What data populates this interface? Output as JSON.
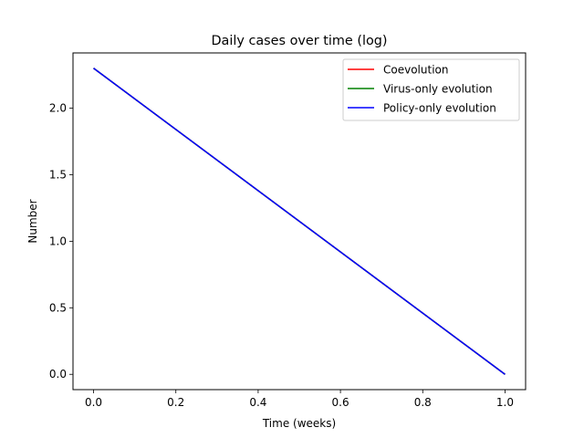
{
  "chart_data": {
    "type": "line",
    "title": "Daily cases over time (log)",
    "xlabel": "Time (weeks)",
    "ylabel": "Number",
    "xlim": [
      -0.05,
      1.05
    ],
    "ylim": [
      -0.115,
      2.415
    ],
    "x_ticks": [
      0.0,
      0.2,
      0.4,
      0.6,
      0.8,
      1.0
    ],
    "x_tick_labels": [
      "0.0",
      "0.2",
      "0.4",
      "0.6",
      "0.8",
      "1.0"
    ],
    "y_ticks": [
      0.0,
      0.5,
      1.0,
      1.5,
      2.0
    ],
    "y_tick_labels": [
      "0.0",
      "0.5",
      "1.0",
      "1.5",
      "2.0"
    ],
    "grid": false,
    "legend_position": "top-right",
    "series": [
      {
        "name": "Coevolution",
        "color": "#ff0000",
        "x": [
          0.0,
          1.0
        ],
        "y": [
          2.3,
          0.0
        ]
      },
      {
        "name": "Virus-only evolution",
        "color": "#008000",
        "x": [
          0.0,
          1.0
        ],
        "y": [
          2.3,
          0.0
        ]
      },
      {
        "name": "Policy-only evolution",
        "color": "#0000ff",
        "x": [
          0.0,
          1.0
        ],
        "y": [
          2.3,
          0.0
        ]
      }
    ]
  }
}
